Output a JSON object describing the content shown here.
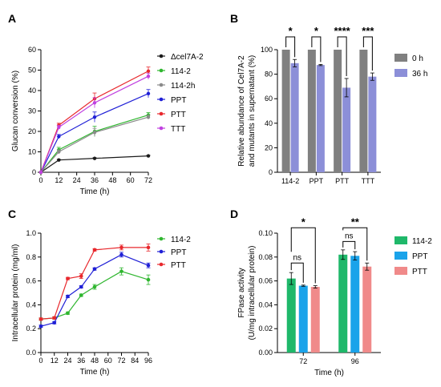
{
  "panels": [
    "A",
    "B",
    "C",
    "D"
  ],
  "colors": {
    "dCel7A2": "#1a1a1a",
    "g114_2": "#2fb62f",
    "g114_2h": "#8a8a8a",
    "ppt": "#1f1fd6",
    "ptt": "#e8282d",
    "ttt": "#c040e0",
    "b0h": "#808080",
    "b36h": "#8c8fd8",
    "d114_2": "#1fb86a",
    "dPPT": "#1aa3ea",
    "dPTT": "#f08a8a"
  },
  "chart_data": [
    {
      "panel": "A",
      "type": "line",
      "xlabel": "Time (h)",
      "ylabel": "Glucan conversion (%)",
      "x": [
        0,
        12,
        36,
        72
      ],
      "xticks": [
        "0",
        "12",
        "24",
        "36",
        "48",
        "60",
        "72"
      ],
      "yticks": [
        "0",
        "10",
        "20",
        "30",
        "40",
        "50",
        "60"
      ],
      "xlim": [
        0,
        72
      ],
      "ylim": [
        0,
        60
      ],
      "series": [
        {
          "name": "Δcel7A-2",
          "values": [
            0,
            6,
            6.8,
            8
          ],
          "err": [
            0,
            0.3,
            0.3,
            0.3
          ]
        },
        {
          "name": "114-2",
          "values": [
            0,
            11,
            20,
            28
          ],
          "err": [
            0,
            1.2,
            2.5,
            1.2
          ]
        },
        {
          "name": "114-2h",
          "values": [
            0,
            10,
            19.5,
            27
          ],
          "err": [
            0,
            1,
            2,
            1
          ]
        },
        {
          "name": "PPT",
          "values": [
            0,
            17.5,
            27,
            38.5
          ],
          "err": [
            0,
            1,
            2.5,
            2
          ]
        },
        {
          "name": "PTT",
          "values": [
            0,
            23,
            36,
            49.5
          ],
          "err": [
            0,
            1,
            2.8,
            2
          ]
        },
        {
          "name": "TTT",
          "values": [
            0,
            22,
            34,
            47
          ],
          "err": [
            0,
            1,
            2.5,
            1.5
          ]
        }
      ]
    },
    {
      "panel": "B",
      "type": "bar",
      "ylabel_lines": [
        "Relative abundance of Cel7A-2",
        "and mutants in supernatant (%)"
      ],
      "categories": [
        "114-2",
        "PPT",
        "PTT",
        "TTT"
      ],
      "ylim": [
        0,
        100
      ],
      "yticks": [
        "0",
        "20",
        "40",
        "60",
        "80",
        "100"
      ],
      "series": [
        {
          "name": "0 h",
          "values": [
            100,
            100,
            100,
            100
          ],
          "err": [
            0,
            0,
            0,
            0
          ]
        },
        {
          "name": "36 h",
          "values": [
            89,
            87.5,
            69,
            78
          ],
          "err": [
            3,
            0.5,
            7.5,
            3
          ]
        }
      ],
      "significance": [
        "*",
        "*",
        "****",
        "***"
      ]
    },
    {
      "panel": "C",
      "type": "line",
      "xlabel": "Time (h)",
      "ylabel": "Intracellular protein (mg/ml)",
      "x": [
        0,
        12,
        24,
        36,
        48,
        72,
        96
      ],
      "xticks": [
        "0",
        "12",
        "24",
        "36",
        "48",
        "60",
        "72",
        "84",
        "96"
      ],
      "yticks": [
        "0.0",
        "0.2",
        "0.4",
        "0.6",
        "0.8",
        "1.0"
      ],
      "xlim": [
        0,
        96
      ],
      "ylim": [
        0,
        1.0
      ],
      "series": [
        {
          "name": "114-2",
          "values": [
            0.28,
            0.29,
            0.33,
            0.48,
            0.55,
            0.68,
            0.61
          ],
          "err": [
            0.01,
            0.01,
            0.01,
            0.01,
            0.02,
            0.03,
            0.04
          ]
        },
        {
          "name": "PPT",
          "values": [
            0.22,
            0.25,
            0.47,
            0.55,
            0.7,
            0.82,
            0.73
          ],
          "err": [
            0.01,
            0.01,
            0.01,
            0.01,
            0.01,
            0.02,
            0.02
          ]
        },
        {
          "name": "PTT",
          "values": [
            0.28,
            0.29,
            0.62,
            0.64,
            0.86,
            0.88,
            0.88
          ],
          "err": [
            0.01,
            0.01,
            0.01,
            0.02,
            0.01,
            0.02,
            0.03
          ]
        }
      ]
    },
    {
      "panel": "D",
      "type": "bar",
      "xlabel": "Time (h)",
      "ylabel_lines": [
        "FPase activity",
        "(U/mg intracellular protein)"
      ],
      "categories": [
        "72",
        "96"
      ],
      "ylim": [
        0,
        0.1
      ],
      "yticks": [
        "0.00",
        "0.02",
        "0.04",
        "0.06",
        "0.08",
        "0.10"
      ],
      "series": [
        {
          "name": "114-2",
          "values": [
            0.062,
            0.082
          ],
          "err": [
            0.005,
            0.004
          ]
        },
        {
          "name": "PPT",
          "values": [
            0.056,
            0.081
          ],
          "err": [
            0.0005,
            0.0035
          ]
        },
        {
          "name": "PTT",
          "values": [
            0.055,
            0.072
          ],
          "err": [
            0.001,
            0.003
          ]
        }
      ],
      "significance": [
        "ns",
        "*",
        "ns",
        "**"
      ]
    }
  ]
}
